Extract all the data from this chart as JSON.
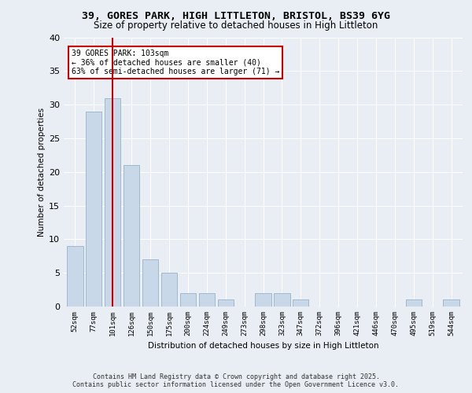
{
  "title1": "39, GORES PARK, HIGH LITTLETON, BRISTOL, BS39 6YG",
  "title2": "Size of property relative to detached houses in High Littleton",
  "xlabel": "Distribution of detached houses by size in High Littleton",
  "ylabel": "Number of detached properties",
  "categories": [
    "52sqm",
    "77sqm",
    "101sqm",
    "126sqm",
    "150sqm",
    "175sqm",
    "200sqm",
    "224sqm",
    "249sqm",
    "273sqm",
    "298sqm",
    "323sqm",
    "347sqm",
    "372sqm",
    "396sqm",
    "421sqm",
    "446sqm",
    "470sqm",
    "495sqm",
    "519sqm",
    "544sqm"
  ],
  "values": [
    9,
    29,
    31,
    21,
    7,
    5,
    2,
    2,
    1,
    0,
    2,
    2,
    1,
    0,
    0,
    0,
    0,
    0,
    1,
    0,
    1
  ],
  "bar_color": "#c8d8e8",
  "bar_edge_color": "#a0b8cc",
  "vline_x": 2,
  "vline_color": "#cc0000",
  "annotation_text": "39 GORES PARK: 103sqm\n← 36% of detached houses are smaller (40)\n63% of semi-detached houses are larger (71) →",
  "annotation_box_color": "#ffffff",
  "annotation_box_edge": "#cc0000",
  "ylim": [
    0,
    40
  ],
  "yticks": [
    0,
    5,
    10,
    15,
    20,
    25,
    30,
    35,
    40
  ],
  "background_color": "#e8eef4",
  "plot_bg_color": "#e8eef4",
  "grid_color": "#ffffff",
  "footer1": "Contains HM Land Registry data © Crown copyright and database right 2025.",
  "footer2": "Contains public sector information licensed under the Open Government Licence v3.0."
}
